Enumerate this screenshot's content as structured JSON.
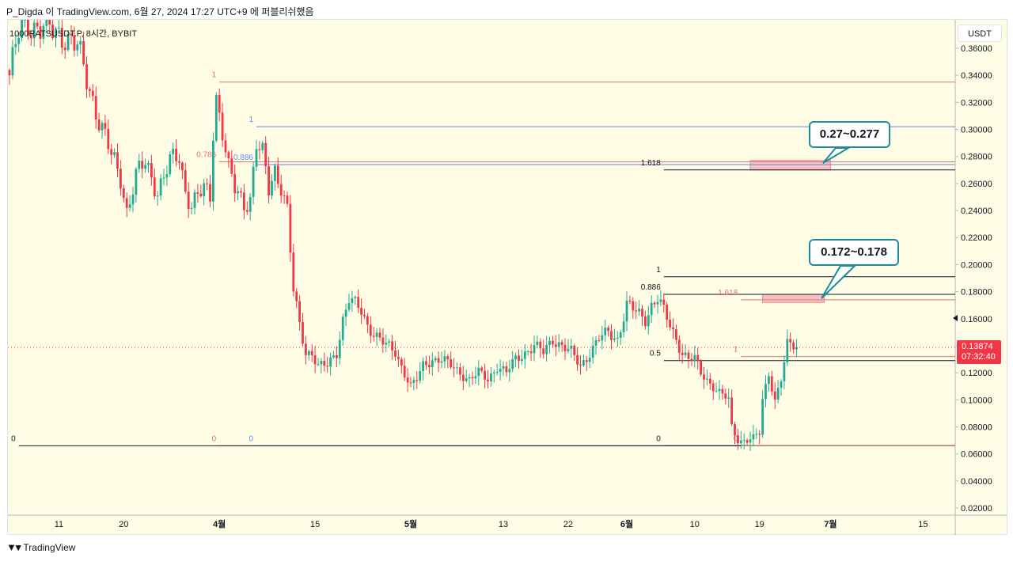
{
  "caption": "P_Digda 이 TradingView.com, 6월 27, 2024 17:27 UTC+9 에 퍼블리쉬했음",
  "symbol_label": "1000RATSUSDT.P, 8시간, BYBIT",
  "currency_button": "USDT",
  "last_price": {
    "value": "0.13874",
    "countdown": "07:32:40"
  },
  "callouts": [
    {
      "text": "0.27~0.277"
    },
    {
      "text": "0.172~0.178"
    }
  ],
  "branding": {
    "logo_text": "TradingView",
    "logo_icon": "tradingview-logo-icon"
  },
  "colors": {
    "background": "#fffde6",
    "up": "#22ab94",
    "down": "#f23645",
    "fib_red": "#e57373",
    "fib_blue": "#5b8def",
    "callout_border": "#1e8c99",
    "zone_fill": "#f5b7c0"
  },
  "chart_data": {
    "type": "candlestick",
    "ylim": [
      0.0,
      0.38
    ],
    "y_ticks": [
      "0.36000",
      "0.34000",
      "0.32000",
      "0.30000",
      "0.28000",
      "0.26000",
      "0.24000",
      "0.22000",
      "0.20000",
      "0.18000",
      "0.16000",
      "0.14000",
      "0.12000",
      "0.10000",
      "0.08000",
      "0.06000",
      "0.04000",
      "0.02000"
    ],
    "x_ticks": [
      {
        "label": "11",
        "idx": 16
      },
      {
        "label": "20",
        "idx": 37
      },
      {
        "label": "4월",
        "idx": 68
      },
      {
        "label": "15",
        "idx": 99
      },
      {
        "label": "5월",
        "idx": 130
      },
      {
        "label": "13",
        "idx": 160
      },
      {
        "label": "22",
        "idx": 181
      },
      {
        "label": "6월",
        "idx": 200
      },
      {
        "label": "10",
        "idx": 222
      },
      {
        "label": "19",
        "idx": 243
      },
      {
        "label": "7월",
        "idx": 266
      },
      {
        "label": "15",
        "idx": 296
      }
    ],
    "close_anchors": [
      [
        0,
        0.34
      ],
      [
        3,
        0.37
      ],
      [
        5,
        0.38
      ],
      [
        10,
        0.375
      ],
      [
        18,
        0.37
      ],
      [
        22,
        0.36
      ],
      [
        26,
        0.33
      ],
      [
        30,
        0.3
      ],
      [
        33,
        0.28
      ],
      [
        36,
        0.265
      ],
      [
        38,
        0.24
      ],
      [
        41,
        0.265
      ],
      [
        44,
        0.275
      ],
      [
        48,
        0.255
      ],
      [
        52,
        0.275
      ],
      [
        55,
        0.28
      ],
      [
        57,
        0.255
      ],
      [
        59,
        0.245
      ],
      [
        61,
        0.25
      ],
      [
        63,
        0.255
      ],
      [
        65,
        0.25
      ],
      [
        66,
        0.3
      ],
      [
        67,
        0.325
      ],
      [
        69,
        0.3
      ],
      [
        71,
        0.27
      ],
      [
        73,
        0.255
      ],
      [
        76,
        0.245
      ],
      [
        78,
        0.25
      ],
      [
        80,
        0.29
      ],
      [
        82,
        0.28
      ],
      [
        84,
        0.255
      ],
      [
        86,
        0.27
      ],
      [
        88,
        0.26
      ],
      [
        90,
        0.24
      ],
      [
        92,
        0.18
      ],
      [
        94,
        0.155
      ],
      [
        96,
        0.135
      ],
      [
        98,
        0.135
      ],
      [
        100,
        0.125
      ],
      [
        103,
        0.125
      ],
      [
        106,
        0.135
      ],
      [
        108,
        0.16
      ],
      [
        110,
        0.175
      ],
      [
        112,
        0.17
      ],
      [
        114,
        0.165
      ],
      [
        116,
        0.155
      ],
      [
        118,
        0.15
      ],
      [
        120,
        0.145
      ],
      [
        122,
        0.14
      ],
      [
        125,
        0.135
      ],
      [
        128,
        0.12
      ],
      [
        130,
        0.11
      ],
      [
        132,
        0.115
      ],
      [
        134,
        0.125
      ],
      [
        137,
        0.13
      ],
      [
        140,
        0.13
      ],
      [
        143,
        0.125
      ],
      [
        146,
        0.12
      ],
      [
        149,
        0.115
      ],
      [
        152,
        0.12
      ],
      [
        155,
        0.115
      ],
      [
        158,
        0.125
      ],
      [
        161,
        0.12
      ],
      [
        164,
        0.13
      ],
      [
        167,
        0.135
      ],
      [
        170,
        0.14
      ],
      [
        173,
        0.135
      ],
      [
        176,
        0.145
      ],
      [
        179,
        0.14
      ],
      [
        182,
        0.135
      ],
      [
        185,
        0.125
      ],
      [
        188,
        0.135
      ],
      [
        191,
        0.145
      ],
      [
        194,
        0.15
      ],
      [
        197,
        0.145
      ],
      [
        200,
        0.17
      ],
      [
        203,
        0.165
      ],
      [
        206,
        0.16
      ],
      [
        208,
        0.17
      ],
      [
        210,
        0.175
      ],
      [
        212,
        0.165
      ],
      [
        214,
        0.155
      ],
      [
        216,
        0.145
      ],
      [
        218,
        0.135
      ],
      [
        220,
        0.13
      ],
      [
        222,
        0.13
      ],
      [
        224,
        0.12
      ],
      [
        226,
        0.115
      ],
      [
        228,
        0.11
      ],
      [
        230,
        0.105
      ],
      [
        233,
        0.1
      ],
      [
        234,
        0.08
      ],
      [
        236,
        0.07
      ],
      [
        239,
        0.07
      ],
      [
        241,
        0.072
      ],
      [
        243,
        0.075
      ],
      [
        244,
        0.1
      ],
      [
        246,
        0.12
      ],
      [
        248,
        0.1
      ],
      [
        250,
        0.115
      ],
      [
        252,
        0.14
      ],
      [
        255,
        0.14
      ]
    ],
    "fib_sets": [
      {
        "name": "red",
        "color": "#e57373",
        "start": 68,
        "end_full": true,
        "levels": [
          {
            "label": "1",
            "value": 0.335
          },
          {
            "label": "0.786",
            "value": 0.276
          },
          {
            "label": "0",
            "value": 0.066
          }
        ]
      },
      {
        "name": "blue",
        "color": "#5b8def",
        "start": 80,
        "end_full": true,
        "levels": [
          {
            "label": "1",
            "value": 0.302
          },
          {
            "label": "0.886",
            "value": 0.274
          },
          {
            "label": "0",
            "value": 0.066
          }
        ]
      },
      {
        "name": "black-left",
        "color": "#131722",
        "start": 3,
        "end_full": true,
        "levels": [
          {
            "label": "0",
            "value": 0.066
          }
        ]
      },
      {
        "name": "black-right",
        "color": "#131722",
        "start": 212,
        "end_full": true,
        "levels": [
          {
            "label": "1",
            "value": 0.191
          },
          {
            "label": "0.886",
            "value": 0.178
          },
          {
            "label": "0.5",
            "value": 0.129
          },
          {
            "label": "1.618",
            "value": 0.27
          },
          {
            "label": "0",
            "value": 0.066
          }
        ]
      },
      {
        "name": "red-small",
        "color": "#e57373",
        "start": 237,
        "end_full": true,
        "levels": [
          {
            "label": "1.618",
            "value": 0.174
          },
          {
            "label": "1",
            "value": 0.132
          },
          {
            "label": "0",
            "value": 0.066
          }
        ]
      }
    ],
    "zones": [
      {
        "from": 0.27,
        "to": 0.277,
        "start": 240,
        "end": 266
      },
      {
        "from": 0.172,
        "to": 0.178,
        "start": 244,
        "end": 264
      }
    ]
  }
}
